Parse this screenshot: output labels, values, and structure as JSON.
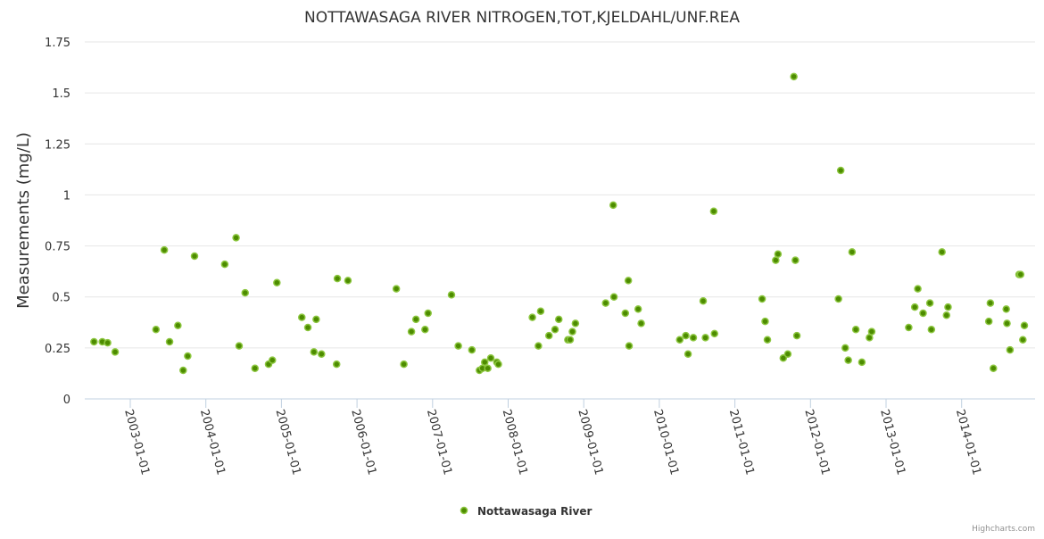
{
  "chart_data": {
    "type": "scatter",
    "title": "NOTTAWASAGA RIVER NITROGEN,TOT,KJELDAHL/UNF.REA",
    "xlabel": "",
    "ylabel": "Measurements (mg/L)",
    "ylim": [
      0,
      1.75
    ],
    "yticks": [
      0,
      0.25,
      0.5,
      0.75,
      1,
      1.25,
      1.5,
      1.75
    ],
    "ytick_labels": [
      "0",
      "0.25",
      "0.5",
      "0.75",
      "1",
      "1.25",
      "1.5",
      "1.75"
    ],
    "xlim": [
      2002.4,
      2014.95
    ],
    "xticks": [
      2003,
      2004,
      2005,
      2006,
      2007,
      2008,
      2009,
      2010,
      2011,
      2012,
      2013,
      2014
    ],
    "xtick_labels": [
      "2003-01-01",
      "2004-01-01",
      "2005-01-01",
      "2006-01-01",
      "2007-01-01",
      "2008-01-01",
      "2009-01-01",
      "2010-01-01",
      "2011-01-01",
      "2012-01-01",
      "2013-01-01",
      "2014-01-01"
    ],
    "grid": "horizontal",
    "legend": "bottom-center",
    "credits": "Highcharts.com",
    "series": [
      {
        "name": "Nottawasaga River",
        "color": "#4d8c00",
        "border_color": "#8cc63f",
        "x": [
          2002.52,
          2002.63,
          2002.7,
          2002.8,
          2003.34,
          2003.45,
          2003.52,
          2003.63,
          2003.7,
          2003.76,
          2003.85,
          2004.25,
          2004.4,
          2004.44,
          2004.52,
          2004.65,
          2004.83,
          2004.88,
          2004.94,
          2005.27,
          2005.35,
          2005.43,
          2005.46,
          2005.53,
          2005.73,
          2005.74,
          2005.88,
          2006.52,
          2006.62,
          2006.72,
          2006.78,
          2006.9,
          2006.94,
          2007.25,
          2007.34,
          2007.52,
          2007.62,
          2007.66,
          2007.69,
          2007.73,
          2007.77,
          2007.85,
          2007.87,
          2008.32,
          2008.4,
          2008.43,
          2008.54,
          2008.62,
          2008.67,
          2008.79,
          2008.82,
          2008.85,
          2008.89,
          2009.29,
          2009.39,
          2009.4,
          2009.55,
          2009.59,
          2009.6,
          2009.72,
          2009.76,
          2010.27,
          2010.35,
          2010.38,
          2010.45,
          2010.58,
          2010.61,
          2010.72,
          2010.73,
          2011.36,
          2011.4,
          2011.43,
          2011.54,
          2011.57,
          2011.64,
          2011.7,
          2011.78,
          2011.8,
          2011.82,
          2012.37,
          2012.4,
          2012.46,
          2012.5,
          2012.55,
          2012.6,
          2012.68,
          2012.78,
          2012.81,
          2013.3,
          2013.38,
          2013.42,
          2013.49,
          2013.58,
          2013.6,
          2013.74,
          2013.8,
          2013.82,
          2014.36,
          2014.38,
          2014.42,
          2014.59,
          2014.6,
          2014.64,
          2014.76,
          2014.78,
          2014.81,
          2014.83
        ],
        "y": [
          0.28,
          0.28,
          0.275,
          0.23,
          0.34,
          0.73,
          0.28,
          0.36,
          0.14,
          0.21,
          0.7,
          0.66,
          0.79,
          0.26,
          0.52,
          0.15,
          0.17,
          0.19,
          0.57,
          0.4,
          0.35,
          0.23,
          0.39,
          0.22,
          0.17,
          0.59,
          0.58,
          0.54,
          0.17,
          0.33,
          0.39,
          0.34,
          0.42,
          0.51,
          0.26,
          0.24,
          0.14,
          0.15,
          0.18,
          0.15,
          0.2,
          0.18,
          0.17,
          0.4,
          0.26,
          0.43,
          0.31,
          0.34,
          0.39,
          0.29,
          0.29,
          0.33,
          0.37,
          0.47,
          0.95,
          0.5,
          0.42,
          0.58,
          0.26,
          0.44,
          0.37,
          0.29,
          0.31,
          0.22,
          0.3,
          0.48,
          0.3,
          0.92,
          0.32,
          0.49,
          0.38,
          0.29,
          0.68,
          0.71,
          0.2,
          0.22,
          1.58,
          0.68,
          0.31,
          0.49,
          1.12,
          0.25,
          0.19,
          0.72,
          0.34,
          0.18,
          0.3,
          0.33,
          0.35,
          0.45,
          0.54,
          0.42,
          0.47,
          0.34,
          0.72,
          0.41,
          0.45,
          0.38,
          0.47,
          0.15,
          0.44,
          0.37,
          0.24,
          0.61,
          0.61,
          0.29,
          0.36
        ]
      }
    ]
  }
}
